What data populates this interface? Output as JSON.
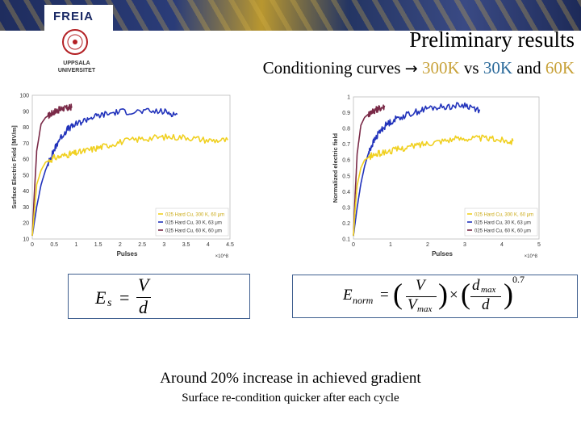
{
  "slide": {
    "logo_text": "FREIA",
    "university": "UPPSALA UNIVERSITET",
    "title": "Preliminary results",
    "subtitle_prefix": "Conditioning curves ",
    "subtitle_arrow": "→",
    "subtitle_hot": "300K",
    "subtitle_mid": " vs ",
    "subtitle_cold": "30K",
    "subtitle_and": " and ",
    "subtitle_warm": "60K",
    "caption_main": "Around 20% increase in achieved gradient",
    "caption_sub": "Surface re-condition quicker after each cycle"
  },
  "equations": {
    "left": {
      "lhs": "E",
      "lhs_sub": "s",
      "eq": "=",
      "num": "V",
      "den": "d"
    },
    "right": {
      "lhs": "E",
      "lhs_sub": "norm",
      "eq": "=",
      "num1": "V",
      "den1": "V",
      "den1_sub": "max",
      "times": "×",
      "num2": "d",
      "num2_sub": "max",
      "den2": "d",
      "exponent": "0.7"
    }
  },
  "colors": {
    "hot": "#f0d020",
    "cold30": "#2233bb",
    "warm60": "#7a2a48",
    "axis": "#333333"
  },
  "chart_data": [
    {
      "type": "line",
      "title": "",
      "xlabel": "Pulses",
      "ylabel": "Surface Electric Field [MV/m]",
      "x_multiplier": "×10^8",
      "xlim": [
        0,
        4.5
      ],
      "ylim": [
        10,
        100
      ],
      "xticks": [
        "0",
        "0.5",
        "1",
        "1.5",
        "2",
        "2.5",
        "3",
        "3.5",
        "4",
        "4.5"
      ],
      "yticks": [
        "10",
        "20",
        "30",
        "40",
        "50",
        "60",
        "70",
        "80",
        "90",
        "100"
      ],
      "legend_position": "bottom-right",
      "series": [
        {
          "name": "025 Hard Cu, 300 K, 60 μm",
          "color": "#f0d020",
          "x": [
            0,
            0.05,
            0.1,
            0.2,
            0.3,
            0.5,
            0.8,
            1.0,
            1.3,
            1.6,
            2.0,
            2.5,
            3.0,
            3.5,
            4.0,
            4.45
          ],
          "y": [
            12,
            28,
            44,
            53,
            58,
            61,
            63,
            64,
            66,
            68,
            71,
            73,
            74,
            74,
            72,
            72
          ]
        },
        {
          "name": "025 Hard Cu, 30 K, 63 μm",
          "color": "#2233bb",
          "x": [
            0,
            0.1,
            0.2,
            0.3,
            0.4,
            0.5,
            0.6,
            0.8,
            1.0,
            1.3,
            1.6,
            2.0,
            2.5,
            3.0,
            3.3
          ],
          "y": [
            12,
            30,
            44,
            53,
            60,
            66,
            72,
            79,
            82,
            86,
            88,
            90,
            90,
            90,
            88
          ]
        },
        {
          "name": "025 Hard Cu, 60 K, 60 μm",
          "color": "#7a2a48",
          "x": [
            0,
            0.05,
            0.1,
            0.2,
            0.3,
            0.4,
            0.5,
            0.6,
            0.7,
            0.8,
            0.9
          ],
          "y": [
            12,
            40,
            65,
            82,
            86,
            88,
            90,
            91,
            92,
            92,
            93
          ]
        }
      ]
    },
    {
      "type": "line",
      "title": "",
      "xlabel": "Pulses",
      "ylabel": "Normalized electric field",
      "x_multiplier": "×10^8",
      "xlim": [
        0,
        5
      ],
      "ylim": [
        0.1,
        1
      ],
      "xticks": [
        "0",
        "1",
        "2",
        "3",
        "4",
        "5"
      ],
      "yticks": [
        "0.1",
        "0.2",
        "0.3",
        "0.4",
        "0.5",
        "0.6",
        "0.7",
        "0.8",
        "0.9",
        "1"
      ],
      "legend_position": "bottom-right",
      "series": [
        {
          "name": "025 Hard Cu, 300 K, 60 μm",
          "color": "#f0d020",
          "x": [
            0,
            0.05,
            0.1,
            0.2,
            0.3,
            0.5,
            0.8,
            1.2,
            1.6,
            2.0,
            2.5,
            3.0,
            3.5,
            4.0,
            4.3
          ],
          "y": [
            0.12,
            0.3,
            0.44,
            0.55,
            0.6,
            0.63,
            0.65,
            0.67,
            0.69,
            0.71,
            0.73,
            0.74,
            0.74,
            0.73,
            0.72
          ]
        },
        {
          "name": "025 Hard Cu, 30 K, 63 μm",
          "color": "#2233bb",
          "x": [
            0,
            0.1,
            0.2,
            0.3,
            0.4,
            0.5,
            0.7,
            0.9,
            1.2,
            1.6,
            2.0,
            2.5,
            3.0,
            3.4
          ],
          "y": [
            0.12,
            0.3,
            0.45,
            0.56,
            0.64,
            0.7,
            0.78,
            0.83,
            0.87,
            0.9,
            0.93,
            0.94,
            0.95,
            0.92
          ]
        },
        {
          "name": "025 Hard Cu, 60 K, 60 μm",
          "color": "#7a2a48",
          "x": [
            0,
            0.05,
            0.1,
            0.2,
            0.3,
            0.4,
            0.5,
            0.6,
            0.7,
            0.85
          ],
          "y": [
            0.12,
            0.4,
            0.64,
            0.82,
            0.87,
            0.89,
            0.91,
            0.92,
            0.93,
            0.94
          ]
        }
      ]
    }
  ]
}
